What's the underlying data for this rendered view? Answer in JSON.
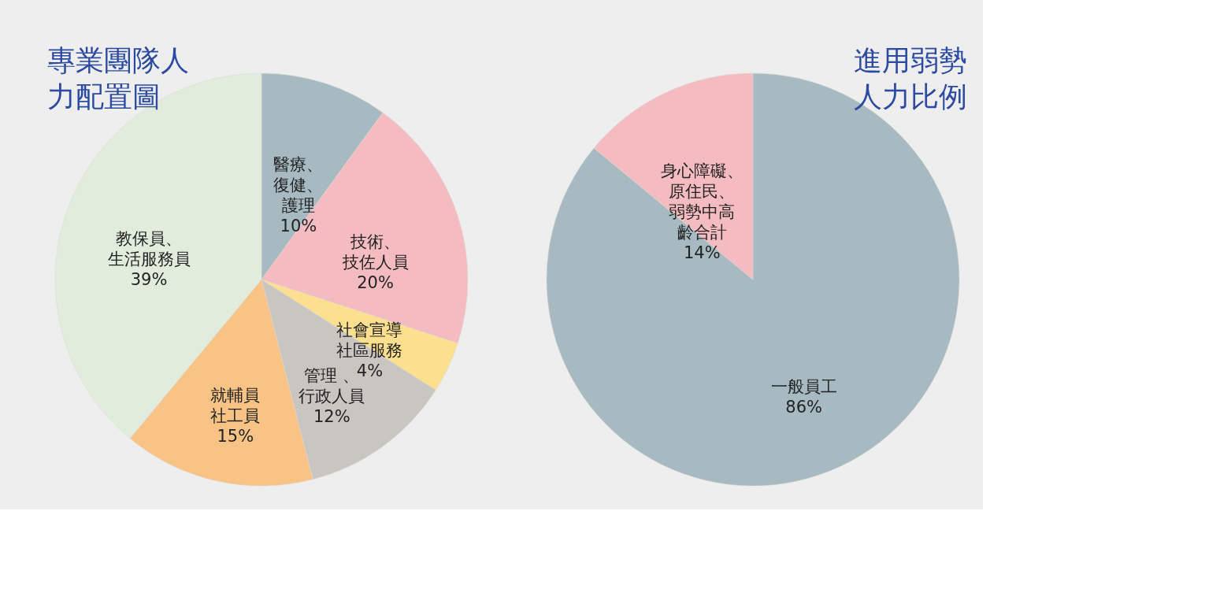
{
  "chart_data": [
    {
      "type": "pie",
      "title": "專業團隊人力配置圖",
      "categories": [
        "醫療、復健、護理",
        "技術、技佐人員",
        "社會宣導社區服務",
        "管理 、行政人員",
        "就輔員社工員",
        "教保員、生活服務員"
      ],
      "values": [
        10,
        20,
        4,
        12,
        15,
        39
      ],
      "value_labels": [
        "10%",
        "20%",
        "4%",
        "12%",
        "15%",
        "39%"
      ],
      "colors": [
        "#a7b9c1",
        "#f4bcc0",
        "#fde08f",
        "#c9c6c1",
        "#f8c384",
        "#e1ecdc"
      ],
      "legend": false
    },
    {
      "type": "pie",
      "title": "進用弱勢人力比例",
      "categories": [
        "一般員工",
        "身心障礙、原住民、弱勢中高齡合計"
      ],
      "values": [
        86,
        14
      ],
      "value_labels": [
        "86%",
        "14%"
      ],
      "colors": [
        "#a7b9c1",
        "#f4bcc0"
      ],
      "legend": false
    }
  ]
}
